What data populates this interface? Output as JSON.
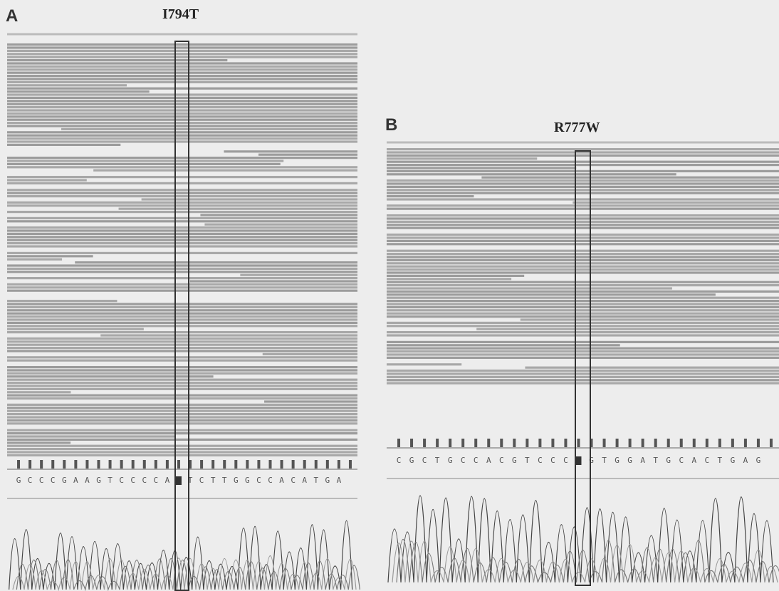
{
  "panels": [
    {
      "label": "A",
      "mutation": "I794T",
      "sequence_left": [
        "G",
        "C",
        "C",
        "C",
        "G",
        "A",
        "A",
        "G",
        "T",
        "C",
        "C",
        "C",
        "C",
        "A"
      ],
      "sequence_right": [
        "T",
        "C",
        "T",
        "T",
        "G",
        "G",
        "C",
        "C",
        "A",
        "C",
        "A",
        "T",
        "G",
        "A"
      ]
    },
    {
      "label": "B",
      "mutation": "R777W",
      "sequence_left": [
        "C",
        "G",
        "C",
        "T",
        "G",
        "C",
        "C",
        "A",
        "C",
        "G",
        "T",
        "C",
        "C",
        "C"
      ],
      "sequence_right": [
        "G",
        "T",
        "G",
        "G",
        "A",
        "T",
        "G",
        "C",
        "A",
        "C",
        "T",
        "G",
        "A",
        "G"
      ]
    }
  ]
}
